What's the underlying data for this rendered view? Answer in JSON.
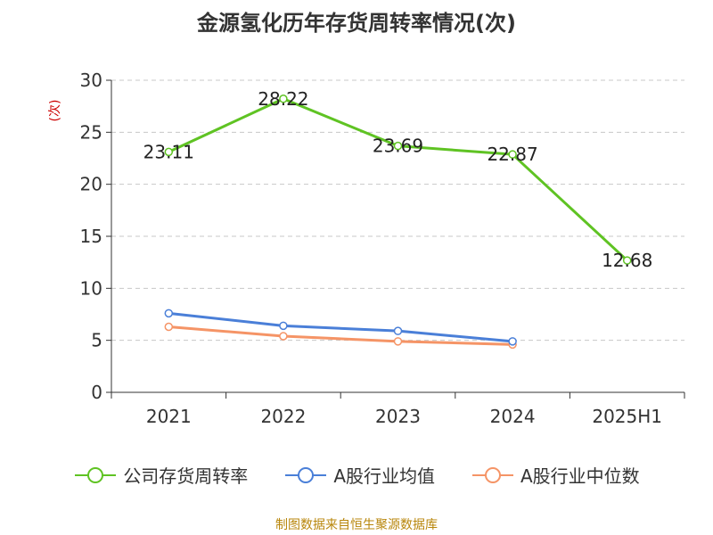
{
  "title": "金源氢化历年存货周转率情况(次)",
  "source": "制图数据来自恒生聚源数据库",
  "chart_data": {
    "type": "line",
    "title": "金源氢化历年存货周转率情况(次)",
    "categories": [
      "2021",
      "2022",
      "2023",
      "2024",
      "2025H1"
    ],
    "ylabel": "(次)",
    "ylim": [
      0,
      30
    ],
    "yticks": [
      0,
      5,
      10,
      15,
      20,
      25,
      30
    ],
    "grid": true,
    "legend_position": "bottom",
    "series": [
      {
        "name": "公司存货周转率",
        "color": "#5fc323",
        "values": [
          23.11,
          28.22,
          23.69,
          22.87,
          12.68
        ],
        "labels": [
          "23.11",
          "28.22",
          "23.69",
          "22.87",
          "12.68"
        ]
      },
      {
        "name": "A股行业均值",
        "color": "#4a7fd8",
        "values": [
          7.6,
          6.4,
          5.9,
          4.9,
          null
        ]
      },
      {
        "name": "A股行业中位数",
        "color": "#f59466",
        "values": [
          6.3,
          5.4,
          4.9,
          4.6,
          null
        ]
      }
    ]
  }
}
